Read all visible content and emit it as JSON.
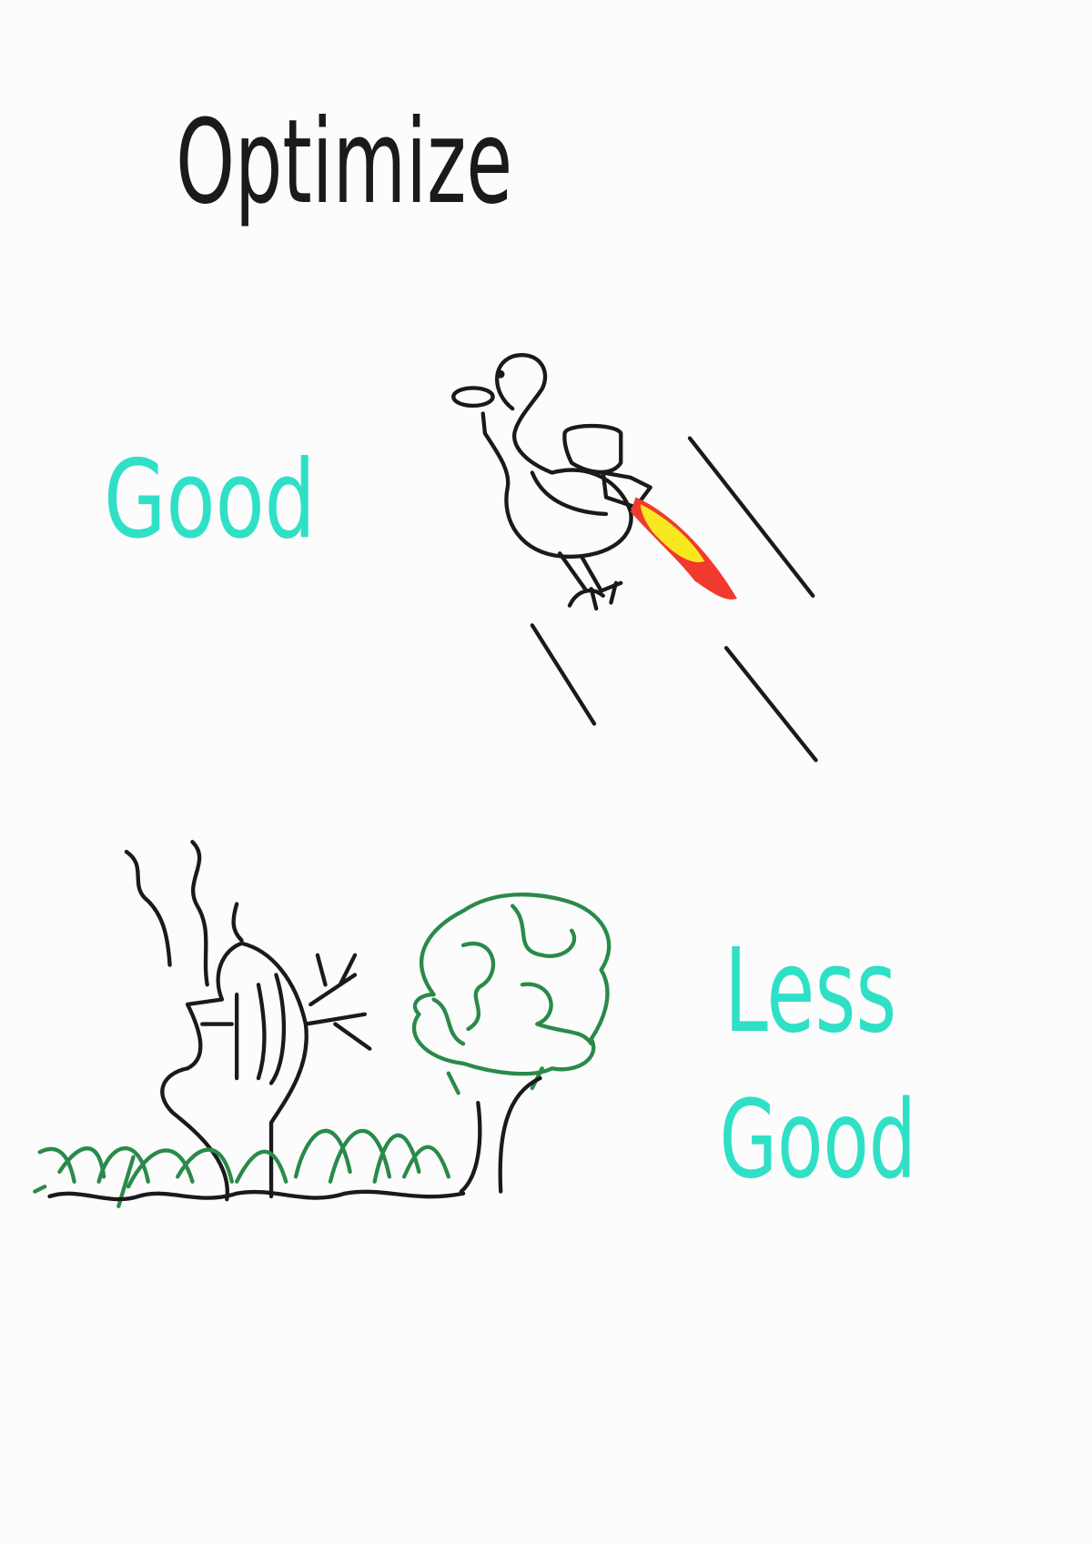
{
  "title": "Optimize",
  "good_label": "Good",
  "less_good_label": [
    "Less",
    "Good"
  ]
}
